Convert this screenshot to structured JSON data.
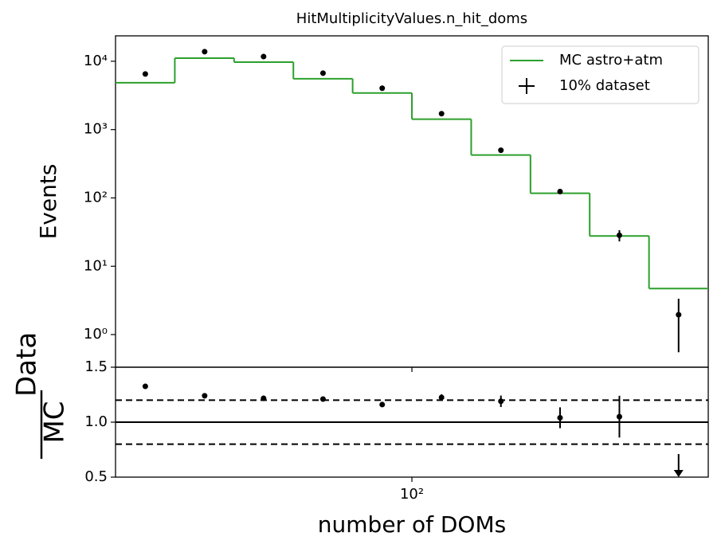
{
  "chart_data": [
    {
      "type": "step_hist",
      "title": "HitMultiplicityValues.n_hit_doms",
      "ylabel": "Events",
      "log_x": true,
      "log_y": true,
      "xlim": [
        31.62,
        316.2
      ],
      "ylim": [
        0.333,
        23550
      ],
      "xticks": [
        {
          "value": 100,
          "label": "10²"
        }
      ],
      "yticks": [
        {
          "value": 1,
          "label": "10⁰"
        },
        {
          "value": 10,
          "label": "10¹"
        },
        {
          "value": 100,
          "label": "10²"
        },
        {
          "value": 1000,
          "label": "10³"
        },
        {
          "value": 10000,
          "label": "10⁴"
        }
      ],
      "bins": [
        31.62,
        39.81,
        50.12,
        63.1,
        79.43,
        100,
        125.9,
        158.5,
        199.5,
        251.2,
        316.2
      ],
      "x": [
        35.5,
        44.7,
        56.2,
        70.8,
        89.1,
        112.2,
        141.3,
        177.8,
        223.9,
        281.8
      ],
      "legend": "upper right",
      "series": [
        {
          "name": "MC astro+atm",
          "color": "#2ca02c",
          "values": [
            4850,
            11100,
            9700,
            5550,
            3430,
            1420,
            425,
            117,
            27.7,
            4.72
          ]
        },
        {
          "name": "10% dataset",
          "color": "#000000",
          "values": [
            6520,
            13800,
            11700,
            6700,
            4030,
            1710,
            499,
            124,
            28.4,
            1.95
          ],
          "errors": [
            80.7,
            117.5,
            108,
            81.9,
            63.5,
            41.4,
            22.3,
            11.1,
            5.3,
            1.4
          ]
        }
      ]
    },
    {
      "type": "ratio",
      "ylabel": {
        "numerator": "Data",
        "denominator": "MC"
      },
      "xlabel": "number of DOMs",
      "log_x": true,
      "xlim": [
        31.62,
        316.2
      ],
      "ylim": [
        0.5,
        1.5
      ],
      "xticks": [
        {
          "value": 100,
          "label": "10²"
        }
      ],
      "yticks": [
        {
          "value": 0.5,
          "label": "0.5"
        },
        {
          "value": 1.0,
          "label": "1.0"
        },
        {
          "value": 1.5,
          "label": "1.5"
        }
      ],
      "x": [
        35.5,
        44.7,
        56.2,
        70.8,
        89.1,
        112.2,
        141.3,
        177.8,
        223.9,
        281.8
      ],
      "values": [
        1.326,
        1.24,
        1.217,
        1.21,
        1.16,
        1.225,
        1.19,
        1.04,
        1.05,
        0.41
      ],
      "errors": [
        0.017,
        0.011,
        0.011,
        0.015,
        0.018,
        0.029,
        0.052,
        0.095,
        0.19,
        0.3
      ],
      "color": "#000000",
      "reference_lines": [
        {
          "value": 1.2,
          "style": "dashed"
        },
        {
          "value": 1.0,
          "style": "solid"
        },
        {
          "value": 0.8,
          "style": "dashed"
        }
      ]
    }
  ]
}
